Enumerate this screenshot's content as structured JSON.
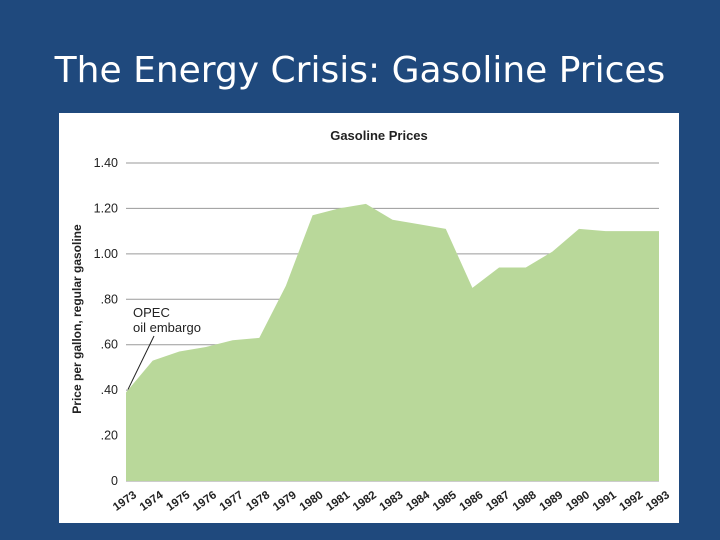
{
  "slide": {
    "title": "The Energy Crisis: Gasoline Prices"
  },
  "colors": {
    "background": "#1f497d",
    "area_fill": "#b9d89a",
    "gridline": "#9a9a9a"
  },
  "chart_data": {
    "type": "area",
    "title": "Gasoline Prices",
    "xlabel": "",
    "ylabel": "Price per gallon, regular gasoline",
    "x": [
      "1973",
      "1974",
      "1975",
      "1976",
      "1977",
      "1978",
      "1979",
      "1980",
      "1981",
      "1982",
      "1983",
      "1984",
      "1985",
      "1986",
      "1987",
      "1988",
      "1989",
      "1990",
      "1991",
      "1992",
      "1993"
    ],
    "values": [
      0.39,
      0.53,
      0.57,
      0.59,
      0.62,
      0.63,
      0.86,
      1.17,
      1.2,
      1.22,
      1.15,
      1.13,
      1.11,
      0.85,
      0.94,
      0.94,
      1.01,
      1.11,
      1.1,
      1.1,
      1.1
    ],
    "ylim": [
      0,
      1.4
    ],
    "yticks": [
      0,
      0.2,
      0.4,
      0.6,
      0.8,
      1.0,
      1.2,
      1.4
    ],
    "ytick_labels": [
      "0",
      ".20",
      ".40",
      ".60",
      ".80",
      "1.00",
      "1.20",
      "1.40"
    ],
    "grid": true,
    "annotation": {
      "line1": "OPEC",
      "line2": "oil embargo",
      "target_year": "1973"
    }
  }
}
